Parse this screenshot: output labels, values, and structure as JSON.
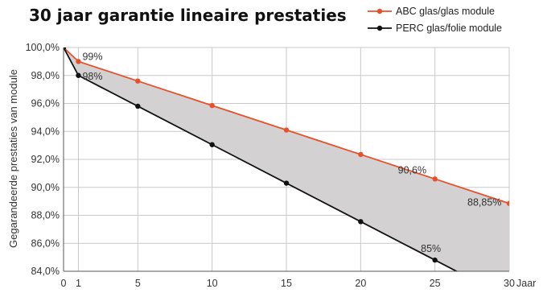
{
  "chart_data": {
    "type": "line",
    "title": "30 jaar garantie lineaire prestaties",
    "xlabel": "Jaar",
    "ylabel": "Gegarandeerde prestaties van module",
    "xlim": [
      0,
      30
    ],
    "ylim": [
      84,
      100
    ],
    "x_ticks": [
      {
        "value": 0,
        "label": "0"
      },
      {
        "value": 1,
        "label": "1"
      },
      {
        "value": 5,
        "label": "5"
      },
      {
        "value": 10,
        "label": "10"
      },
      {
        "value": 15,
        "label": "15"
      },
      {
        "value": 20,
        "label": "20"
      },
      {
        "value": 25,
        "label": "25"
      },
      {
        "value": 30,
        "label": "30"
      }
    ],
    "y_ticks": [
      {
        "value": 100,
        "label": "100,0%"
      },
      {
        "value": 98,
        "label": "98,0%"
      },
      {
        "value": 96,
        "label": "96,0%"
      },
      {
        "value": 94,
        "label": "94,0%"
      },
      {
        "value": 92,
        "label": "92,0%"
      },
      {
        "value": 90,
        "label": "90,0%"
      },
      {
        "value": 88,
        "label": "88,0%"
      },
      {
        "value": 86,
        "label": "86,0%"
      },
      {
        "value": 84,
        "label": "84,0%"
      }
    ],
    "grid": true,
    "legend_position": "top-right",
    "fill_between_series": true,
    "fill_color": "#d3d1d2",
    "series": [
      {
        "name": "ABC glas/glas module",
        "color": "#e8502a",
        "x": [
          0,
          1,
          5,
          10,
          15,
          20,
          25,
          30
        ],
        "y": [
          100,
          99,
          97.6,
          95.85,
          94.1,
          92.35,
          90.6,
          88.85
        ],
        "labels": [
          {
            "x": 1,
            "y": 99,
            "text": "99%"
          },
          {
            "x": 25,
            "y": 90.6,
            "text": "90,6%"
          },
          {
            "x": 30,
            "y": 88.85,
            "text": "88,85%"
          }
        ]
      },
      {
        "name": "PERC glas/folie module",
        "color": "#111111",
        "x": [
          0,
          1,
          5,
          10,
          15,
          20,
          25,
          30
        ],
        "y": [
          100,
          98,
          95.8,
          93.05,
          90.3,
          87.55,
          84.8,
          82.05
        ],
        "labels": [
          {
            "x": 1,
            "y": 98,
            "text": "98%"
          },
          {
            "x": 25,
            "y": 84.8,
            "text": "85%"
          }
        ]
      }
    ]
  }
}
